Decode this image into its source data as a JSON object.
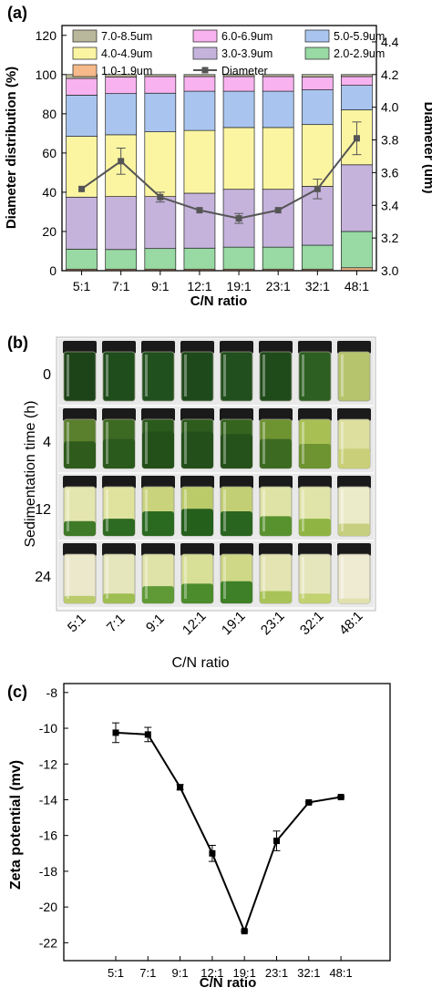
{
  "chart_data": [
    {
      "panel_label": "(a)",
      "type": "bar",
      "stacked": true,
      "categories": [
        "5:1",
        "7:1",
        "9:1",
        "12:1",
        "19:1",
        "23:1",
        "32:1",
        "48:1"
      ],
      "xlabel": "C/N ratio",
      "ylabel": "Diameter distribution (%)",
      "ylabel_right": "Diameter (um)",
      "ylim": [
        0,
        125
      ],
      "yticks": [
        0,
        20,
        40,
        60,
        80,
        100,
        120
      ],
      "ylim_right": [
        3.0,
        4.5
      ],
      "yticks_right": [
        3.0,
        3.2,
        3.4,
        3.6,
        3.8,
        4.0,
        4.2,
        4.4
      ],
      "legend_position": "top",
      "series": [
        {
          "name": "1.0-1.9um",
          "color": "#f5b98a",
          "values": [
            0.8,
            0.8,
            0.8,
            0.8,
            0.8,
            0.8,
            0.8,
            1.5
          ]
        },
        {
          "name": "2.0-2.9um",
          "color": "#98d9a4",
          "values": [
            10.2,
            10,
            10.5,
            10.7,
            11.2,
            11.2,
            12.2,
            18.5
          ]
        },
        {
          "name": "3.0-3.9um",
          "color": "#c5b3dc",
          "values": [
            26.5,
            27,
            26.5,
            28,
            29.5,
            29.5,
            30,
            34
          ]
        },
        {
          "name": "4.0-4.9um",
          "color": "#fbf5a2",
          "values": [
            31,
            31.5,
            33,
            32,
            31.5,
            31.5,
            31.5,
            28
          ]
        },
        {
          "name": "5.0-5.9um",
          "color": "#a9c5ef",
          "values": [
            21,
            21,
            19.7,
            20,
            18.5,
            18.5,
            17.7,
            12.5
          ]
        },
        {
          "name": "6.0-6.9um",
          "color": "#f7b2ef",
          "values": [
            8.5,
            8.5,
            8.5,
            7.5,
            7.5,
            7.5,
            6.5,
            4.5
          ]
        },
        {
          "name": "7.0-8.5um",
          "color": "#b9b89c",
          "values": [
            2.0,
            1.2,
            1.0,
            1.0,
            1.0,
            1.0,
            1.3,
            1.0
          ]
        }
      ],
      "line_series": {
        "name": "Diameter",
        "axis": "right",
        "color": "#555555",
        "values": [
          3.5,
          3.67,
          3.45,
          3.37,
          3.32,
          3.37,
          3.5,
          3.81
        ],
        "errors": [
          0.0,
          0.08,
          0.03,
          0.0,
          0.03,
          0.0,
          0.06,
          0.1
        ]
      }
    },
    {
      "panel_label": "(b)",
      "type": "image-grid",
      "ylabel": "Sedimentation time (h)",
      "xlabel": "C/N ratio",
      "row_labels": [
        "0",
        "4",
        "12",
        "24"
      ],
      "column_labels": [
        "5:1",
        "7:1",
        "9:1",
        "12:1",
        "19:1",
        "23:1",
        "32:1",
        "48:1"
      ],
      "cell_colors": [
        [
          "#1d4418",
          "#1f4d1c",
          "#20501d",
          "#1e4a1b",
          "#214f1d",
          "#1f4b1b",
          "#2c5f21",
          "#b7c46e"
        ],
        [
          "#5a7f2d",
          "#3d6a22",
          "#2a5a1c",
          "#2d5c1d",
          "#35641f",
          "#6e9331",
          "#a8c053",
          "#dcdf9e"
        ],
        [
          "#e4e6b0",
          "#dfe39e",
          "#c9d37c",
          "#bccb6a",
          "#c2cf74",
          "#dfe4a6",
          "#e1e4a9",
          "#ecebc9"
        ],
        [
          "#ebe8cb",
          "#e6e6bd",
          "#e0e3a8",
          "#d8df96",
          "#cfd886",
          "#e4e4b3",
          "#e6e6bd",
          "#efebd3"
        ]
      ],
      "sediment_colors": [
        [
          "#1d4418",
          "#1f4d1c",
          "#20501d",
          "#1e4a1b",
          "#214f1d",
          "#1f4b1b",
          "#2c5f21",
          "#b7c46e"
        ],
        [
          "#2f5c1c",
          "#2a5a1c",
          "#234f19",
          "#23501a",
          "#25521a",
          "#3c6a21",
          "#6e9331",
          "#c8cf78"
        ],
        [
          "#3f7a28",
          "#2e6b22",
          "#2a6a20",
          "#245f1c",
          "#2a6520",
          "#58922f",
          "#8fb443",
          "#c6cf7f"
        ],
        [
          "#b9cb6a",
          "#9ebd52",
          "#5f9a36",
          "#4c8c2c",
          "#3d8028",
          "#a8c358",
          "#c2d271",
          "#e0e1ad"
        ]
      ],
      "sediment_fraction": [
        [
          1.0,
          1.0,
          1.0,
          1.0,
          1.0,
          1.0,
          1.0,
          1.0
        ],
        [
          0.55,
          0.6,
          0.75,
          0.75,
          0.7,
          0.6,
          0.5,
          0.4
        ],
        [
          0.3,
          0.35,
          0.5,
          0.55,
          0.5,
          0.4,
          0.35,
          0.25
        ],
        [
          0.15,
          0.2,
          0.35,
          0.4,
          0.45,
          0.25,
          0.2,
          0.1
        ]
      ]
    },
    {
      "panel_label": "(c)",
      "type": "line",
      "categories": [
        "5:1",
        "7:1",
        "9:1",
        "12:1",
        "19:1",
        "23:1",
        "32:1",
        "48:1"
      ],
      "values": [
        -10.25,
        -10.35,
        -13.3,
        -17.0,
        -21.35,
        -16.3,
        -14.15,
        -13.85
      ],
      "errors": [
        0.55,
        0.4,
        0.15,
        0.45,
        0.05,
        0.55,
        0.05,
        0.05
      ],
      "xlabel": "C/N ratio",
      "ylabel": "Zeta potential (mv)",
      "ylim": [
        -23,
        -7.5
      ],
      "yticks": [
        -22,
        -20,
        -18,
        -16,
        -14,
        -12,
        -10,
        -8
      ],
      "color": "#000000"
    }
  ]
}
